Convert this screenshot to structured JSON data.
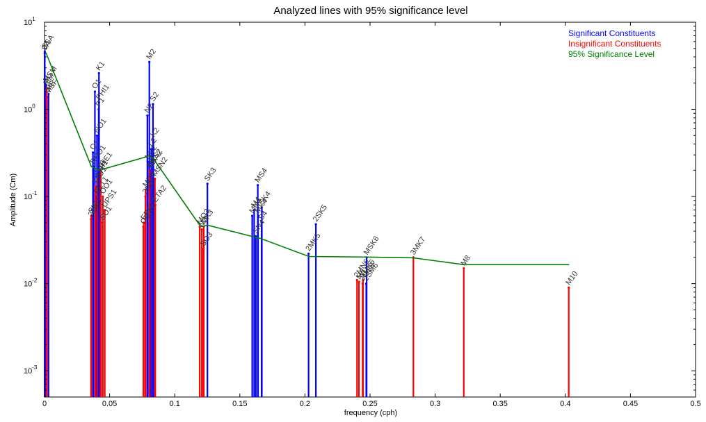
{
  "chart_data": {
    "type": "line",
    "title": "Analyzed lines with 95% significance level",
    "xlabel": "frequency (cph)",
    "ylabel": "Amplitude (Cm)",
    "xlim": [
      0,
      0.5
    ],
    "ylim": [
      0.0005,
      10
    ],
    "yscale": "log",
    "grid": false,
    "legend_position": "top-right",
    "x_ticks": [
      "0",
      "0.05",
      "0.1",
      "0.15",
      "0.2",
      "0.25",
      "0.3",
      "0.35",
      "0.4",
      "0.45",
      "0.5"
    ],
    "y_ticks": [
      {
        "base": "10",
        "exp": "1",
        "value": 10
      },
      {
        "base": "10",
        "exp": "0",
        "value": 1
      },
      {
        "base": "10",
        "exp": "-1",
        "value": 0.1
      },
      {
        "base": "10",
        "exp": "-2",
        "value": 0.01
      },
      {
        "base": "10",
        "exp": "-3",
        "value": 0.001
      }
    ],
    "legend": [
      {
        "label": "Significant Constituents",
        "color": "#0000ff"
      },
      {
        "label": "Insignificant Constituents",
        "color": "#ff0000"
      },
      {
        "label": "95% Significance Level",
        "color": "#008000"
      }
    ],
    "significance_level": {
      "name": "95% Significance Level",
      "color": "#008000",
      "points": [
        {
          "x": 0.001,
          "y": 4.5
        },
        {
          "x": 0.036,
          "y": 0.22
        },
        {
          "x": 0.042,
          "y": 0.2
        },
        {
          "x": 0.08,
          "y": 0.29
        },
        {
          "x": 0.083,
          "y": 0.28
        },
        {
          "x": 0.12,
          "y": 0.045
        },
        {
          "x": 0.125,
          "y": 0.047
        },
        {
          "x": 0.162,
          "y": 0.034
        },
        {
          "x": 0.166,
          "y": 0.033
        },
        {
          "x": 0.203,
          "y": 0.0205
        },
        {
          "x": 0.245,
          "y": 0.0202
        },
        {
          "x": 0.283,
          "y": 0.0198
        },
        {
          "x": 0.322,
          "y": 0.0165
        },
        {
          "x": 0.403,
          "y": 0.0165
        }
      ]
    },
    "constituents": [
      {
        "name": "SSA",
        "freq": 0.0002,
        "amp": 4.6,
        "significant": true
      },
      {
        "name": "SA",
        "freq": 0.0001,
        "amp": 4.4,
        "significant": true
      },
      {
        "name": "MSM",
        "freq": 0.0013,
        "amp": 1.9,
        "significant": true
      },
      {
        "name": "MM",
        "freq": 0.0015,
        "amp": 1.75,
        "significant": false
      },
      {
        "name": "MSF",
        "freq": 0.0028,
        "amp": 1.4,
        "significant": false
      },
      {
        "name": "MF",
        "freq": 0.0031,
        "amp": 1.5,
        "significant": true
      },
      {
        "name": "2Q1",
        "freq": 0.0357,
        "amp": 0.055,
        "significant": false
      },
      {
        "name": "SIG1",
        "freq": 0.0359,
        "amp": 0.06,
        "significant": false
      },
      {
        "name": "Q1",
        "freq": 0.0372,
        "amp": 0.32,
        "significant": true
      },
      {
        "name": "RHO1",
        "freq": 0.0374,
        "amp": 0.22,
        "significant": true
      },
      {
        "name": "O1",
        "freq": 0.0387,
        "amp": 1.6,
        "significant": true
      },
      {
        "name": "TAU1",
        "freq": 0.039,
        "amp": 0.13,
        "significant": false
      },
      {
        "name": "BET1",
        "freq": 0.04,
        "amp": 0.1,
        "significant": false
      },
      {
        "name": "NO1",
        "freq": 0.0403,
        "amp": 0.5,
        "significant": true
      },
      {
        "name": "CHI1",
        "freq": 0.0407,
        "amp": 0.16,
        "significant": false
      },
      {
        "name": "P1",
        "freq": 0.0416,
        "amp": 1.0,
        "significant": true
      },
      {
        "name": "K1",
        "freq": 0.0418,
        "amp": 2.6,
        "significant": true
      },
      {
        "name": "PHI1",
        "freq": 0.0419,
        "amp": 1.2,
        "significant": true
      },
      {
        "name": "THE1",
        "freq": 0.0431,
        "amp": 0.19,
        "significant": false
      },
      {
        "name": "J1",
        "freq": 0.0432,
        "amp": 0.2,
        "significant": false
      },
      {
        "name": "SO1",
        "freq": 0.0446,
        "amp": 0.05,
        "significant": false
      },
      {
        "name": "OO1",
        "freq": 0.0448,
        "amp": 0.1,
        "significant": false
      },
      {
        "name": "UPS1",
        "freq": 0.0463,
        "amp": 0.07,
        "significant": false
      },
      {
        "name": "OQ2",
        "freq": 0.0759,
        "amp": 0.045,
        "significant": false
      },
      {
        "name": "EPS2",
        "freq": 0.0762,
        "amp": 0.05,
        "significant": false
      },
      {
        "name": "2N2",
        "freq": 0.0775,
        "amp": 0.1,
        "significant": false
      },
      {
        "name": "MU2",
        "freq": 0.0777,
        "amp": 0.12,
        "significant": false
      },
      {
        "name": "N2",
        "freq": 0.079,
        "amp": 0.85,
        "significant": true
      },
      {
        "name": "NU2",
        "freq": 0.0792,
        "amp": 0.25,
        "significant": true
      },
      {
        "name": "M2",
        "freq": 0.0805,
        "amp": 3.5,
        "significant": true
      },
      {
        "name": "MKS2",
        "freq": 0.0807,
        "amp": 0.2,
        "significant": false
      },
      {
        "name": "LDA2",
        "freq": 0.0818,
        "amp": 0.2,
        "significant": false
      },
      {
        "name": "L2",
        "freq": 0.082,
        "amp": 0.35,
        "significant": true
      },
      {
        "name": "S2",
        "freq": 0.0833,
        "amp": 1.15,
        "significant": true
      },
      {
        "name": "K2",
        "freq": 0.0836,
        "amp": 0.45,
        "significant": true
      },
      {
        "name": "MSN2",
        "freq": 0.0848,
        "amp": 0.16,
        "significant": false
      },
      {
        "name": "ETA2",
        "freq": 0.0851,
        "amp": 0.08,
        "significant": false
      },
      {
        "name": "MO3",
        "freq": 0.1192,
        "amp": 0.045,
        "significant": false
      },
      {
        "name": "M3",
        "freq": 0.1208,
        "amp": 0.042,
        "significant": false
      },
      {
        "name": "SO3",
        "freq": 0.122,
        "amp": 0.025,
        "significant": false
      },
      {
        "name": "MK3",
        "freq": 0.1223,
        "amp": 0.045,
        "significant": false
      },
      {
        "name": "SK3",
        "freq": 0.1251,
        "amp": 0.14,
        "significant": true
      },
      {
        "name": "MN4",
        "freq": 0.1595,
        "amp": 0.06,
        "significant": true
      },
      {
        "name": "M4",
        "freq": 0.161,
        "amp": 0.07,
        "significant": true
      },
      {
        "name": "SN4",
        "freq": 0.1623,
        "amp": 0.035,
        "significant": true
      },
      {
        "name": "MS4",
        "freq": 0.1638,
        "amp": 0.135,
        "significant": true
      },
      {
        "name": "MK4",
        "freq": 0.164,
        "amp": 0.06,
        "significant": true
      },
      {
        "name": "S4",
        "freq": 0.1667,
        "amp": 0.05,
        "significant": true
      },
      {
        "name": "SK4",
        "freq": 0.1669,
        "amp": 0.075,
        "significant": true
      },
      {
        "name": "2MK5",
        "freq": 0.2028,
        "amp": 0.022,
        "significant": true
      },
      {
        "name": "2SK5",
        "freq": 0.2084,
        "amp": 0.048,
        "significant": true
      },
      {
        "name": "2MN6",
        "freq": 0.24,
        "amp": 0.011,
        "significant": false
      },
      {
        "name": "M6",
        "freq": 0.2415,
        "amp": 0.0105,
        "significant": false
      },
      {
        "name": "2MS6",
        "freq": 0.2443,
        "amp": 0.01,
        "significant": false
      },
      {
        "name": "2MK6",
        "freq": 0.2446,
        "amp": 0.011,
        "significant": false
      },
      {
        "name": "2SM6",
        "freq": 0.2471,
        "amp": 0.01,
        "significant": true
      },
      {
        "name": "MSK6",
        "freq": 0.2474,
        "amp": 0.02,
        "significant": true
      },
      {
        "name": "3MK7",
        "freq": 0.2833,
        "amp": 0.02,
        "significant": false
      },
      {
        "name": "M8",
        "freq": 0.322,
        "amp": 0.015,
        "significant": false
      },
      {
        "name": "M10",
        "freq": 0.4026,
        "amp": 0.009,
        "significant": false
      }
    ]
  }
}
